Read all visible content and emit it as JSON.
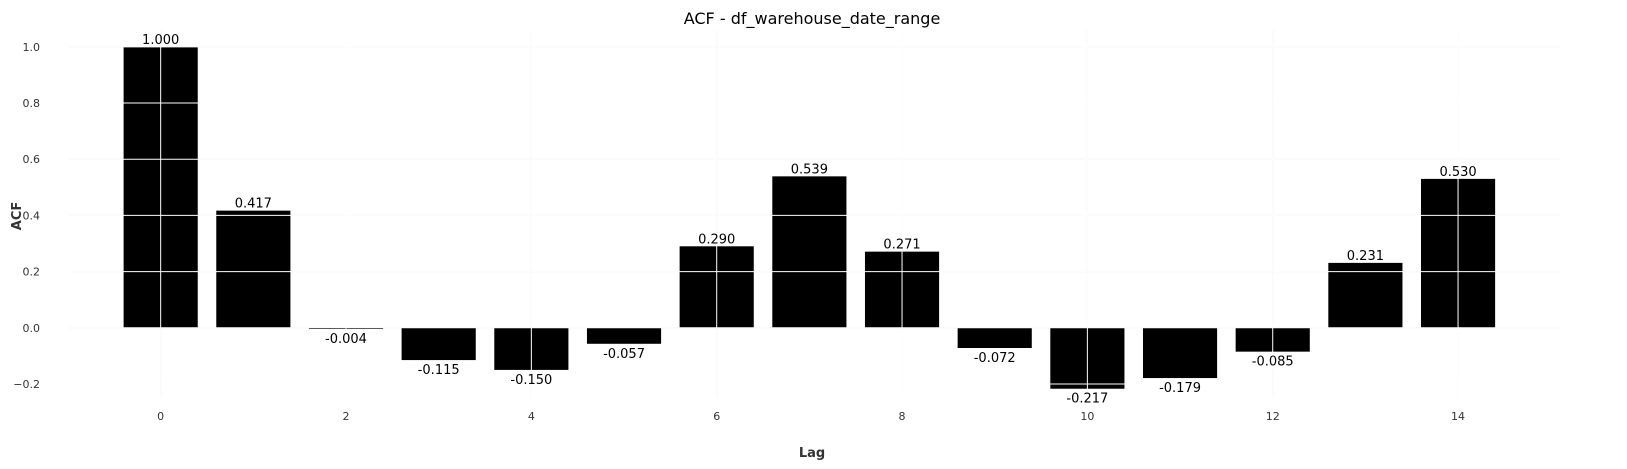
{
  "chart_data": {
    "type": "bar",
    "title": "ACF - df_warehouse_date_range",
    "xlabel": "Lag",
    "ylabel": "ACF",
    "x": [
      0,
      1,
      2,
      3,
      4,
      5,
      6,
      7,
      8,
      9,
      10,
      11,
      12,
      13,
      14
    ],
    "values": [
      1.0,
      0.417,
      -0.004,
      -0.115,
      -0.15,
      -0.057,
      0.29,
      0.539,
      0.271,
      -0.072,
      -0.217,
      -0.179,
      -0.085,
      0.231,
      0.53
    ],
    "value_labels": [
      "1.000",
      "0.417",
      "-0.004",
      "-0.115",
      "-0.150",
      "-0.057",
      "0.290",
      "0.539",
      "0.271",
      "-0.072",
      "-0.217",
      "-0.179",
      "-0.085",
      "0.231",
      "0.530"
    ],
    "xticks": [
      0,
      2,
      4,
      6,
      8,
      10,
      12,
      14
    ],
    "xtick_labels": [
      "0",
      "2",
      "4",
      "6",
      "8",
      "10",
      "12",
      "14"
    ],
    "yticks": [
      -0.2,
      0.0,
      0.2,
      0.4,
      0.6,
      0.8,
      1.0
    ],
    "ytick_labels": [
      "−0.2",
      "0.0",
      "0.2",
      "0.4",
      "0.6",
      "0.8",
      "1.0"
    ],
    "xlim": [
      -1,
      15.1
    ],
    "ylim": [
      -0.25,
      1.06
    ],
    "grid": true,
    "bar_color": "#000000",
    "grid_color": "#dddddd"
  }
}
